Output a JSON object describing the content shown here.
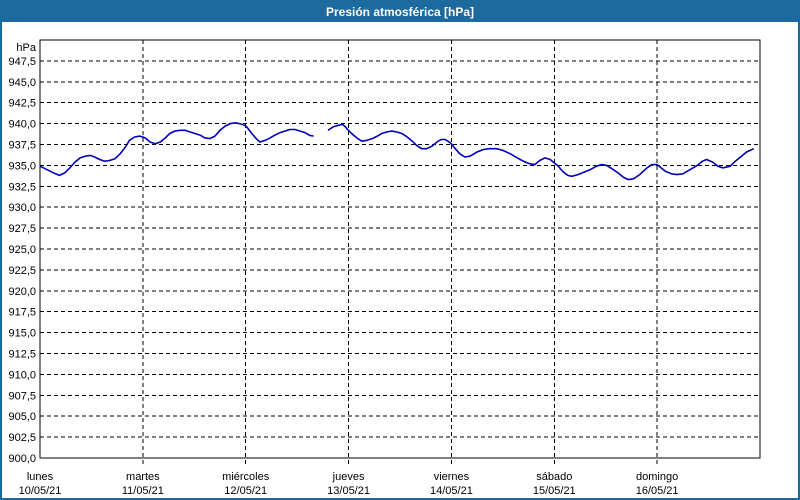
{
  "window": {
    "title": "Presión atmosférica [hPa]"
  },
  "colors": {
    "frame": "#1d6a9e",
    "title_text": "#ffffff",
    "plot_bg": "#ffffff",
    "axis": "#000000",
    "grid": "#000000",
    "line": "#0000bb",
    "text": "#000000"
  },
  "chart_data": {
    "type": "line",
    "title": "Presión atmosférica [hPa]",
    "unit": "hPa",
    "ylim": [
      900,
      950
    ],
    "ytick_step": 2.5,
    "grid": "dashed",
    "legend": "none",
    "yticks": [
      {
        "v": 947.5,
        "label": "947,5"
      },
      {
        "v": 945.0,
        "label": "945,0"
      },
      {
        "v": 942.5,
        "label": "942,5"
      },
      {
        "v": 940.0,
        "label": "940,0"
      },
      {
        "v": 937.5,
        "label": "937,5"
      },
      {
        "v": 935.0,
        "label": "935,0"
      },
      {
        "v": 932.5,
        "label": "932,5"
      },
      {
        "v": 930.0,
        "label": "930,0"
      },
      {
        "v": 927.5,
        "label": "927,5"
      },
      {
        "v": 925.0,
        "label": "925,0"
      },
      {
        "v": 922.5,
        "label": "922,5"
      },
      {
        "v": 920.0,
        "label": "920,0"
      },
      {
        "v": 917.5,
        "label": "917,5"
      },
      {
        "v": 915.0,
        "label": "915,0"
      },
      {
        "v": 912.5,
        "label": "912,5"
      },
      {
        "v": 910.0,
        "label": "910,0"
      },
      {
        "v": 907.5,
        "label": "907,5"
      },
      {
        "v": 905.0,
        "label": "905,0"
      },
      {
        "v": 902.5,
        "label": "902,5"
      },
      {
        "v": 900.0,
        "label": "900,0"
      }
    ],
    "days": [
      {
        "name": "lunes",
        "date": "10/05/21"
      },
      {
        "name": "martes",
        "date": "11/05/21"
      },
      {
        "name": "miércoles",
        "date": "12/05/21"
      },
      {
        "name": "jueves",
        "date": "13/05/21"
      },
      {
        "name": "viernes",
        "date": "14/05/21"
      },
      {
        "name": "sábado",
        "date": "15/05/21"
      },
      {
        "name": "domingo",
        "date": "16/05/21"
      }
    ],
    "x_range_days": [
      0,
      7
    ],
    "series": [
      {
        "name": "Presión atmosférica",
        "color": "#0000bb",
        "points": [
          [
            0.0,
            934.9
          ],
          [
            0.05,
            934.6
          ],
          [
            0.1,
            934.3
          ],
          [
            0.15,
            934.0
          ],
          [
            0.19,
            933.8
          ],
          [
            0.24,
            934.1
          ],
          [
            0.29,
            934.7
          ],
          [
            0.34,
            935.4
          ],
          [
            0.39,
            935.9
          ],
          [
            0.44,
            936.1
          ],
          [
            0.49,
            936.2
          ],
          [
            0.53,
            936.0
          ],
          [
            0.58,
            935.7
          ],
          [
            0.63,
            935.5
          ],
          [
            0.68,
            935.6
          ],
          [
            0.73,
            935.8
          ],
          [
            0.78,
            936.4
          ],
          [
            0.83,
            937.2
          ],
          [
            0.87,
            938.0
          ],
          [
            0.92,
            938.4
          ],
          [
            0.97,
            938.5
          ],
          [
            1.02,
            938.3
          ],
          [
            1.07,
            937.8
          ],
          [
            1.12,
            937.6
          ],
          [
            1.17,
            937.8
          ],
          [
            1.22,
            938.3
          ],
          [
            1.26,
            938.8
          ],
          [
            1.31,
            939.1
          ],
          [
            1.36,
            939.2
          ],
          [
            1.41,
            939.2
          ],
          [
            1.46,
            939.0
          ],
          [
            1.51,
            938.8
          ],
          [
            1.56,
            938.6
          ],
          [
            1.6,
            938.3
          ],
          [
            1.65,
            938.2
          ],
          [
            1.7,
            938.5
          ],
          [
            1.75,
            939.2
          ],
          [
            1.8,
            939.7
          ],
          [
            1.85,
            940.0
          ],
          [
            1.9,
            940.1
          ],
          [
            1.94,
            940.0
          ],
          [
            1.99,
            939.8
          ],
          [
            2.01,
            939.6
          ],
          [
            2.06,
            938.8
          ],
          [
            2.11,
            938.1
          ],
          [
            2.14,
            937.8
          ],
          [
            2.19,
            938.0
          ],
          [
            2.24,
            938.3
          ],
          [
            2.28,
            938.6
          ],
          [
            2.33,
            938.9
          ],
          [
            2.38,
            939.1
          ],
          [
            2.43,
            939.3
          ],
          [
            2.48,
            939.3
          ],
          [
            2.53,
            939.1
          ],
          [
            2.58,
            938.9
          ],
          [
            2.62,
            938.6
          ],
          [
            2.66,
            938.5
          ],
          [
            2.72,
            null
          ],
          [
            2.8,
            939.2
          ],
          [
            2.85,
            939.6
          ],
          [
            2.9,
            939.8
          ],
          [
            2.94,
            939.9
          ],
          [
            2.97,
            939.6
          ],
          [
            2.99,
            939.3
          ],
          [
            3.04,
            938.7
          ],
          [
            3.09,
            938.2
          ],
          [
            3.13,
            937.9
          ],
          [
            3.18,
            938.0
          ],
          [
            3.23,
            938.2
          ],
          [
            3.28,
            938.5
          ],
          [
            3.32,
            938.8
          ],
          [
            3.37,
            939.0
          ],
          [
            3.42,
            939.1
          ],
          [
            3.47,
            939.0
          ],
          [
            3.52,
            938.8
          ],
          [
            3.57,
            938.4
          ],
          [
            3.62,
            937.9
          ],
          [
            3.66,
            937.4
          ],
          [
            3.71,
            937.0
          ],
          [
            3.76,
            937.0
          ],
          [
            3.81,
            937.3
          ],
          [
            3.86,
            937.8
          ],
          [
            3.9,
            938.1
          ],
          [
            3.94,
            938.1
          ],
          [
            3.99,
            937.7
          ],
          [
            4.03,
            937.1
          ],
          [
            4.08,
            936.4
          ],
          [
            4.13,
            936.0
          ],
          [
            4.18,
            936.1
          ],
          [
            4.25,
            936.6
          ],
          [
            4.31,
            936.9
          ],
          [
            4.37,
            937.0
          ],
          [
            4.44,
            937.0
          ],
          [
            4.5,
            936.8
          ],
          [
            4.57,
            936.4
          ],
          [
            4.64,
            935.9
          ],
          [
            4.7,
            935.5
          ],
          [
            4.76,
            935.2
          ],
          [
            4.81,
            935.1
          ],
          [
            4.86,
            935.6
          ],
          [
            4.91,
            935.9
          ],
          [
            4.96,
            935.7
          ],
          [
            4.99,
            935.4
          ],
          [
            5.04,
            934.9
          ],
          [
            5.08,
            934.3
          ],
          [
            5.13,
            933.8
          ],
          [
            5.17,
            933.7
          ],
          [
            5.23,
            933.9
          ],
          [
            5.29,
            934.2
          ],
          [
            5.35,
            934.5
          ],
          [
            5.41,
            934.9
          ],
          [
            5.46,
            935.1
          ],
          [
            5.51,
            935.0
          ],
          [
            5.56,
            934.6
          ],
          [
            5.62,
            934.1
          ],
          [
            5.67,
            933.6
          ],
          [
            5.72,
            933.3
          ],
          [
            5.77,
            933.4
          ],
          [
            5.83,
            933.9
          ],
          [
            5.9,
            934.7
          ],
          [
            5.95,
            935.1
          ],
          [
            6.0,
            935.1
          ],
          [
            6.03,
            934.8
          ],
          [
            6.08,
            934.3
          ],
          [
            6.14,
            934.0
          ],
          [
            6.19,
            933.9
          ],
          [
            6.25,
            934.0
          ],
          [
            6.32,
            934.5
          ],
          [
            6.39,
            935.0
          ],
          [
            6.44,
            935.5
          ],
          [
            6.48,
            935.7
          ],
          [
            6.54,
            935.4
          ],
          [
            6.59,
            934.9
          ],
          [
            6.64,
            934.7
          ],
          [
            6.71,
            934.9
          ],
          [
            6.76,
            935.5
          ],
          [
            6.81,
            936.0
          ],
          [
            6.87,
            936.6
          ],
          [
            6.94,
            937.0
          ]
        ]
      }
    ]
  }
}
